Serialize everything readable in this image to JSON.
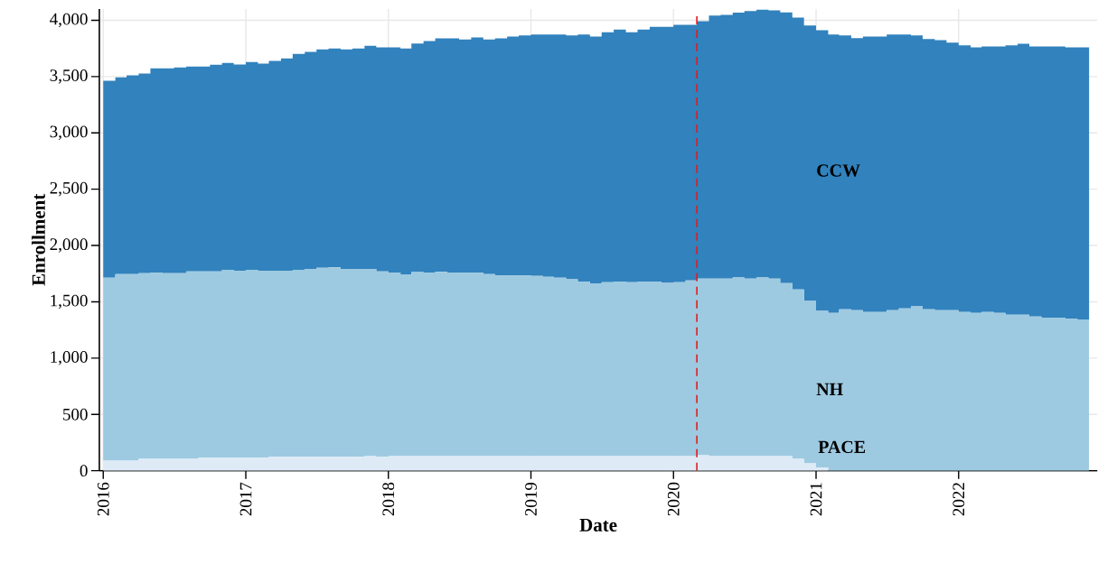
{
  "chart_data": {
    "type": "area",
    "stacked": true,
    "xlabel": "Date",
    "ylabel": "Enrollment",
    "x": [
      "2016-01",
      "2016-02",
      "2016-03",
      "2016-04",
      "2016-05",
      "2016-06",
      "2016-07",
      "2016-08",
      "2016-09",
      "2016-10",
      "2016-11",
      "2016-12",
      "2017-01",
      "2017-02",
      "2017-03",
      "2017-04",
      "2017-05",
      "2017-06",
      "2017-07",
      "2017-08",
      "2017-09",
      "2017-10",
      "2017-11",
      "2017-12",
      "2018-01",
      "2018-02",
      "2018-03",
      "2018-04",
      "2018-05",
      "2018-06",
      "2018-07",
      "2018-08",
      "2018-09",
      "2018-10",
      "2018-11",
      "2018-12",
      "2019-01",
      "2019-02",
      "2019-03",
      "2019-04",
      "2019-05",
      "2019-06",
      "2019-07",
      "2019-08",
      "2019-09",
      "2019-10",
      "2019-11",
      "2019-12",
      "2020-01",
      "2020-02",
      "2020-03",
      "2020-04",
      "2020-05",
      "2020-06",
      "2020-07",
      "2020-08",
      "2020-09",
      "2020-10",
      "2020-11",
      "2020-12",
      "2021-01",
      "2021-02",
      "2021-03",
      "2021-04",
      "2021-05",
      "2021-06",
      "2021-07",
      "2021-08",
      "2021-09",
      "2021-10",
      "2021-11",
      "2021-12",
      "2022-01",
      "2022-02",
      "2022-03",
      "2022-04",
      "2022-05",
      "2022-06",
      "2022-07",
      "2022-08",
      "2022-09",
      "2022-10",
      "2022-11",
      "2022-12"
    ],
    "series": [
      {
        "name": "PACE",
        "color": "#deebf7",
        "values": [
          90,
          90,
          90,
          105,
          105,
          105,
          105,
          105,
          116,
          116,
          116,
          116,
          116,
          116,
          125,
          125,
          125,
          125,
          125,
          125,
          125,
          125,
          130,
          125,
          130,
          130,
          130,
          130,
          130,
          130,
          130,
          130,
          130,
          130,
          130,
          130,
          130,
          130,
          130,
          130,
          130,
          130,
          130,
          130,
          130,
          130,
          130,
          130,
          130,
          130,
          138,
          130,
          130,
          130,
          130,
          130,
          130,
          130,
          106,
          66,
          27,
          0,
          0,
          0,
          0,
          0,
          0,
          0,
          0,
          0,
          0,
          0,
          0,
          0,
          0,
          0,
          0,
          0,
          0,
          0,
          0,
          0,
          0,
          0
        ]
      },
      {
        "name": "NH",
        "color": "#9ecae1",
        "values": [
          1623,
          1655,
          1655,
          1648,
          1654,
          1648,
          1648,
          1665,
          1654,
          1654,
          1669,
          1660,
          1669,
          1660,
          1651,
          1651,
          1660,
          1668,
          1677,
          1682,
          1668,
          1668,
          1663,
          1645,
          1629,
          1609,
          1635,
          1629,
          1637,
          1629,
          1629,
          1629,
          1615,
          1606,
          1606,
          1606,
          1600,
          1592,
          1583,
          1569,
          1549,
          1529,
          1544,
          1550,
          1544,
          1550,
          1550,
          1538,
          1544,
          1559,
          1568,
          1576,
          1576,
          1585,
          1576,
          1585,
          1576,
          1536,
          1504,
          1441,
          1392,
          1402,
          1434,
          1425,
          1410,
          1410,
          1425,
          1442,
          1460,
          1434,
          1425,
          1425,
          1410,
          1402,
          1410,
          1402,
          1386,
          1386,
          1369,
          1360,
          1360,
          1351,
          1340,
          1322
        ]
      },
      {
        "name": "CCW",
        "color": "#3182bd",
        "values": [
          1749,
          1748,
          1765,
          1774,
          1814,
          1820,
          1829,
          1820,
          1820,
          1835,
          1837,
          1831,
          1845,
          1840,
          1863,
          1886,
          1917,
          1926,
          1940,
          1943,
          1949,
          1957,
          1980,
          1989,
          2000,
          2011,
          2028,
          2057,
          2072,
          2080,
          2071,
          2088,
          2085,
          2103,
          2120,
          2129,
          2143,
          2151,
          2160,
          2166,
          2194,
          2197,
          2220,
          2238,
          2220,
          2238,
          2261,
          2273,
          2285,
          2270,
          2285,
          2335,
          2341,
          2352,
          2376,
          2379,
          2382,
          2404,
          2414,
          2446,
          2493,
          2472,
          2431,
          2417,
          2446,
          2446,
          2449,
          2432,
          2405,
          2399,
          2399,
          2376,
          2367,
          2357,
          2358,
          2366,
          2391,
          2406,
          2399,
          2408,
          2408,
          2408,
          2419,
          2428
        ]
      }
    ],
    "xlim": [
      "2015-12-22",
      "2022-12-22"
    ],
    "xticks": [
      {
        "value": "2016",
        "label": "2016"
      },
      {
        "value": "2017",
        "label": "2017"
      },
      {
        "value": "2018",
        "label": "2018"
      },
      {
        "value": "2019",
        "label": "2019"
      },
      {
        "value": "2020",
        "label": "2020"
      },
      {
        "value": "2021",
        "label": "2021"
      },
      {
        "value": "2022",
        "label": "2022"
      }
    ],
    "ylim": [
      0,
      4100
    ],
    "yticks": [
      0,
      500,
      {
        "value": 1000,
        "label": "1,000"
      },
      {
        "value": 1500,
        "label": "1,500"
      },
      {
        "value": 2000,
        "label": "2,000"
      },
      {
        "value": 2500,
        "label": "2,500"
      },
      {
        "value": 3000,
        "label": "3,000"
      },
      {
        "value": 3500,
        "label": "3,500"
      },
      {
        "value": 4000,
        "label": "4,000"
      }
    ],
    "grid": true,
    "ref_lines": [
      {
        "axis": "x",
        "value": "2020-03",
        "color": "#e41a1c",
        "line_style": "dashed"
      }
    ]
  }
}
